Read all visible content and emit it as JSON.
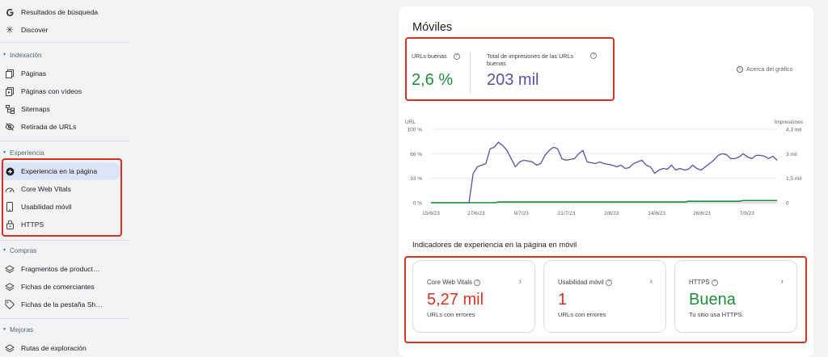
{
  "colors": {
    "good": "#1e8e3e",
    "poor": "#d93025",
    "accent": "#5c4fa6",
    "highlight": "#d93025"
  },
  "sidebar": {
    "top_items": [
      {
        "label": "Resultados de búsqueda",
        "icon": "google-g-icon"
      },
      {
        "label": "Discover",
        "icon": "asterisk-icon"
      }
    ],
    "sections": [
      {
        "title": "Indexación",
        "items": [
          {
            "label": "Páginas",
            "icon": "pages-icon"
          },
          {
            "label": "Páginas con vídeos",
            "icon": "video-pages-icon"
          },
          {
            "label": "Sitemaps",
            "icon": "sitemap-icon"
          },
          {
            "label": "Retirada de URLs",
            "icon": "eye-off-icon"
          }
        ]
      },
      {
        "title": "Experiencia",
        "items": [
          {
            "label": "Experiencia en la página",
            "icon": "plus-circle-icon",
            "active": true
          },
          {
            "label": "Core Web Vitals",
            "icon": "speedometer-icon"
          },
          {
            "label": "Usabilidad móvil",
            "icon": "smartphone-icon"
          },
          {
            "label": "HTTPS",
            "icon": "lock-icon"
          }
        ]
      },
      {
        "title": "Compras",
        "items": [
          {
            "label": "Fragmentos de product…",
            "icon": "layers-icon"
          },
          {
            "label": "Fichas de comerciantes",
            "icon": "layers-icon"
          },
          {
            "label": "Fichas de la pestaña Sh…",
            "icon": "tag-icon"
          }
        ]
      },
      {
        "title": "Mejoras",
        "items": [
          {
            "label": "Rutas de exploración",
            "icon": "layers-icon"
          }
        ]
      }
    ]
  },
  "main": {
    "title": "Móviles",
    "metric_good": {
      "label": "URLs buenas",
      "value": "2,6 %"
    },
    "metric_impr": {
      "label": "Total de impresiones de las URLs buenas",
      "value": "203 mil"
    },
    "about_chart": "Acerca del gráfico",
    "indicators_title": "Indicadores de experiencia en la página en móvil",
    "indicators": [
      {
        "name": "Core Web Vitals",
        "value": "5,27 mil",
        "value_color": "#d93025",
        "sub": "URLs con errores"
      },
      {
        "name": "Usabilidad móvil",
        "value": "1",
        "value_color": "#d93025",
        "sub": "URLs con errores"
      },
      {
        "name": "HTTPS",
        "value": "Buena",
        "value_color": "#1e8e3e",
        "sub": "Tu sitio usa HTTPS."
      }
    ]
  },
  "chart_data": {
    "type": "line",
    "left_axis_label": "URL",
    "right_axis_label": "Impresiones",
    "left_ticks": [
      "100 %",
      "66 %",
      "33 %",
      "0 %"
    ],
    "right_ticks": [
      "4,3 mil",
      "3 mil",
      "1,5 mil",
      "0"
    ],
    "x_tick_labels": [
      "15/6/23",
      "27/6/23",
      "9/7/23",
      "21/7/23",
      "2/8/23",
      "14/8/23",
      "26/8/23",
      "7/9/23"
    ],
    "x_start_date": "2023-06-15",
    "x_end_date": "2023-09-15",
    "ylim_left": [
      0,
      100
    ],
    "ylim_right": [
      0,
      4500
    ],
    "series": [
      {
        "name": "Impresiones",
        "color": "#5c4fa6",
        "axis": "right",
        "values": [
          0,
          0,
          0,
          0,
          0,
          0,
          0,
          0,
          0,
          0,
          1800,
          2200,
          2300,
          2400,
          3300,
          3400,
          3700,
          3500,
          3200,
          2700,
          2200,
          2500,
          2600,
          2550,
          2500,
          2300,
          2400,
          2900,
          3200,
          3400,
          3300,
          2700,
          2600,
          2650,
          2700,
          3000,
          3200,
          2500,
          2450,
          2400,
          2500,
          2400,
          2350,
          2300,
          2200,
          2300,
          2100,
          2150,
          2400,
          2500,
          2600,
          2300,
          2200,
          1800,
          2000,
          2100,
          2050,
          2300,
          2000,
          2100,
          2000,
          2050,
          2300,
          2100,
          2000,
          2200,
          2400,
          2600,
          2900,
          3000,
          2950,
          2700,
          2700,
          2800,
          3000,
          2800,
          2700,
          2900,
          2900,
          2850,
          2700,
          2850,
          2600
        ]
      },
      {
        "name": "URLs buenas",
        "color": "#1e8e3e",
        "axis": "left",
        "values": [
          0,
          0,
          0,
          0,
          0,
          0,
          0,
          0,
          0,
          0,
          0,
          0,
          0,
          0,
          0,
          0,
          1,
          1,
          1,
          1,
          1,
          1,
          1,
          1,
          1,
          1,
          1,
          1,
          1,
          1,
          1,
          1,
          1,
          1,
          1,
          1,
          1,
          1,
          1,
          1,
          1,
          1,
          1,
          1,
          1,
          1,
          1,
          1,
          1,
          1,
          1,
          1,
          1,
          1,
          1,
          1,
          1,
          1,
          1,
          1,
          1,
          2,
          2,
          2,
          2,
          2,
          2,
          2,
          2,
          2,
          2,
          2,
          2,
          2,
          3,
          3,
          3,
          3,
          3,
          3,
          3,
          3,
          3
        ]
      }
    ],
    "grid": true
  }
}
